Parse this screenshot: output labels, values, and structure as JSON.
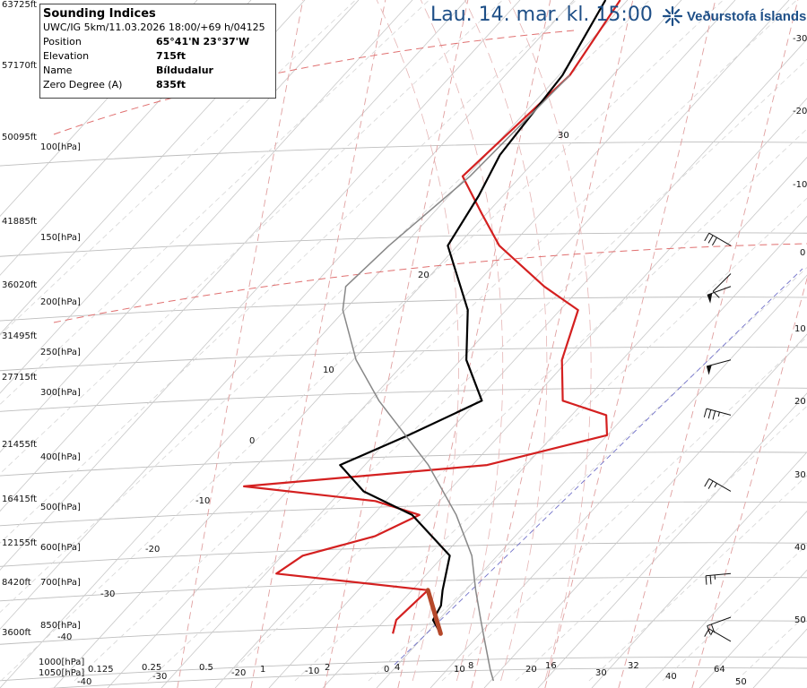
{
  "title": "Lau. 14. mar. kl. 15:00",
  "logo": {
    "text": "Veðurstofa Íslands",
    "icon": "vedurstofa-star-icon",
    "color": "#1e4f87"
  },
  "info": {
    "title": "Sounding Indices",
    "model": "UWC/IG 5km/11.03.2026 18:00/+69 h/04125",
    "rows": [
      {
        "key": "Position",
        "value": "65°41'N 23°37'W"
      },
      {
        "key": "Elevation",
        "value": "715ft"
      },
      {
        "key": "Name",
        "value": "Bíldudalur"
      },
      {
        "key": "Zero Degree (A)",
        "value": "835ft"
      }
    ]
  },
  "colors": {
    "temperature": "#d42020",
    "dewpoint_or_parcel": "#000000",
    "moist_adiabat": "#888888",
    "isobar": "#bdbdbd",
    "isotherm_zero": "#e07070",
    "mixing_ratio": "#e0a0a0",
    "low_level": "#c94a2a"
  },
  "chart_data": {
    "type": "line",
    "title": "Lau. 14. mar. kl. 15:00",
    "height_labels": [
      "63725ft",
      "57170ft",
      "50095ft",
      "41885ft",
      "36020ft",
      "31495ft",
      "27715ft",
      "21455ft",
      "16415ft",
      "12155ft",
      "8420ft",
      "3600ft"
    ],
    "pressure_labels": [
      "100[hPa]",
      "150[hPa]",
      "200[hPa]",
      "250[hPa]",
      "300[hPa]",
      "400[hPa]",
      "500[hPa]",
      "600[hPa]",
      "700[hPa]",
      "850[hPa]",
      "1000[hPa]",
      "1050[hPa]"
    ],
    "pressure_levels": [
      100,
      150,
      200,
      250,
      300,
      400,
      500,
      600,
      700,
      850,
      1000,
      1050
    ],
    "right_axis_labels": [
      "-30",
      "-20",
      "-10",
      "0",
      "10",
      "20",
      "30",
      "40",
      "50"
    ],
    "bottom_temp_labels": [
      "-40",
      "-30",
      "-20",
      "-10",
      "0",
      "10",
      "20",
      "30",
      "40",
      "50"
    ],
    "bottom_mixing_labels": [
      "0.125",
      "0.25",
      "0.5",
      "1",
      "2",
      "4",
      "8",
      "16",
      "32",
      "64"
    ],
    "isotherm_labels": [
      "30",
      "20",
      "10",
      "0",
      "-10",
      "-20",
      "-30",
      "-40"
    ],
    "xlim": [
      -40,
      50
    ],
    "series": [
      {
        "color": "#d42020",
        "points": [
          [
            850,
            -3.5
          ],
          [
            800,
            -5
          ],
          [
            700,
            -5
          ],
          [
            650,
            -28
          ],
          [
            600,
            -27
          ],
          [
            550,
            -20
          ],
          [
            500,
            -17
          ],
          [
            470,
            -25
          ],
          [
            440,
            -45
          ],
          [
            400,
            -15
          ],
          [
            350,
            -3
          ],
          [
            320,
            -6
          ],
          [
            300,
            -14
          ],
          [
            250,
            -20
          ],
          [
            200,
            -25
          ],
          [
            180,
            -33
          ],
          [
            150,
            -45
          ],
          [
            130,
            -52
          ],
          [
            110,
            -60
          ],
          [
            70,
            -60
          ],
          [
            50,
            -64
          ]
        ]
      },
      {
        "color": "#000000",
        "points": [
          [
            850,
            3
          ],
          [
            800,
            0
          ],
          [
            750,
            -1
          ],
          [
            700,
            -3
          ],
          [
            600,
            -7
          ],
          [
            500,
            -18
          ],
          [
            450,
            -28
          ],
          [
            400,
            -35
          ],
          [
            350,
            -30
          ],
          [
            300,
            -25
          ],
          [
            250,
            -33
          ],
          [
            200,
            -40
          ],
          [
            150,
            -52
          ],
          [
            120,
            -55
          ],
          [
            100,
            -58
          ],
          [
            70,
            -61
          ],
          [
            50,
            -66
          ]
        ]
      },
      {
        "color": "#888888",
        "points": [
          [
            1050,
            17
          ],
          [
            1000,
            15
          ],
          [
            850,
            8.8
          ],
          [
            800,
            6.5
          ],
          [
            700,
            1.5
          ],
          [
            600,
            -4
          ],
          [
            500,
            -12
          ],
          [
            400,
            -23
          ],
          [
            300,
            -39
          ],
          [
            250,
            -48
          ],
          [
            200,
            -57
          ],
          [
            180,
            -60
          ],
          [
            150,
            -60
          ],
          [
            110,
            -59
          ],
          [
            70,
            -60
          ]
        ]
      },
      {
        "color": "#c94a2a",
        "points": [
          [
            850,
            3
          ],
          [
            700,
            -5
          ]
        ]
      }
    ],
    "wind_barbs": [
      {
        "pressure": 150,
        "direction_deg": 300,
        "speed_kt": 30
      },
      {
        "pressure": 170,
        "direction_deg": 225,
        "speed_kt": 10
      },
      {
        "pressure": 180,
        "direction_deg": 250,
        "speed_kt": 50
      },
      {
        "pressure": 250,
        "direction_deg": 255,
        "speed_kt": 50
      },
      {
        "pressure": 320,
        "direction_deg": 285,
        "speed_kt": 35
      },
      {
        "pressure": 450,
        "direction_deg": 300,
        "speed_kt": 25
      },
      {
        "pressure": 650,
        "direction_deg": 265,
        "speed_kt": 25
      },
      {
        "pressure": 790,
        "direction_deg": 250,
        "speed_kt": 20
      },
      {
        "pressure": 880,
        "direction_deg": 300,
        "speed_kt": 15
      }
    ]
  }
}
